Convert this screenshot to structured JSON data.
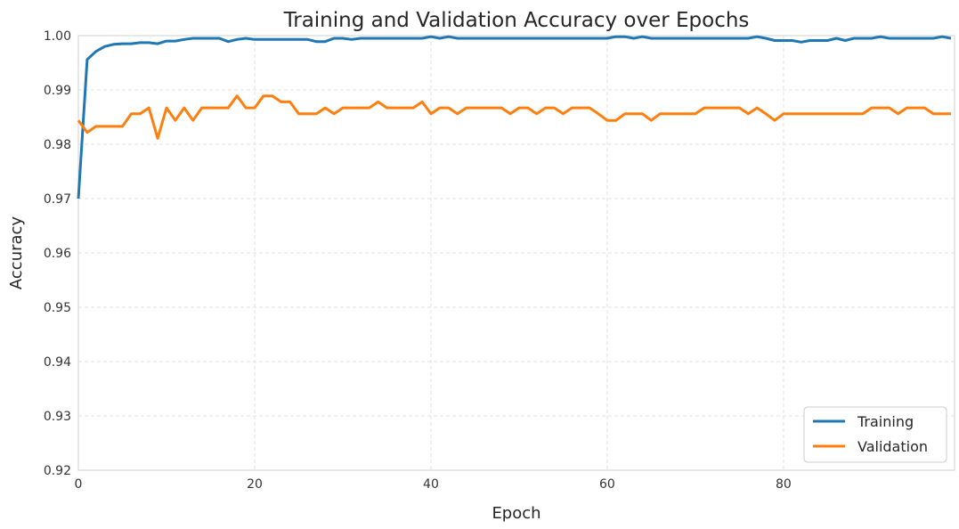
{
  "chart_data": {
    "type": "line",
    "title": "Training and Validation Accuracy over Epochs",
    "xlabel": "Epoch",
    "ylabel": "Accuracy",
    "xlim": [
      0,
      99
    ],
    "ylim": [
      0.92,
      1.0
    ],
    "xticks": [
      "0",
      "20",
      "40",
      "60",
      "80"
    ],
    "yticks": [
      "0.92",
      "0.93",
      "0.94",
      "0.95",
      "0.96",
      "0.97",
      "0.98",
      "0.99",
      "1.00"
    ],
    "grid": true,
    "legend_position": "bottom-right",
    "series": [
      {
        "name": "Training",
        "color": "#1f77b4",
        "values": [
          0.97,
          0.9956,
          0.9971,
          0.998,
          0.9984,
          0.9985,
          0.9985,
          0.9987,
          0.9987,
          0.9985,
          0.999,
          0.999,
          0.9993,
          0.9995,
          0.9995,
          0.9995,
          0.9995,
          0.9989,
          0.9993,
          0.9995,
          0.9993,
          0.9993,
          0.9993,
          0.9993,
          0.9993,
          0.9993,
          0.9993,
          0.9989,
          0.9989,
          0.9995,
          0.9995,
          0.9993,
          0.9995,
          0.9995,
          0.9995,
          0.9995,
          0.9995,
          0.9995,
          0.9995,
          0.9995,
          0.9998,
          0.9995,
          0.9998,
          0.9995,
          0.9995,
          0.9995,
          0.9995,
          0.9995,
          0.9995,
          0.9995,
          0.9995,
          0.9995,
          0.9995,
          0.9995,
          0.9995,
          0.9995,
          0.9995,
          0.9995,
          0.9995,
          0.9995,
          0.9995,
          0.9998,
          0.9998,
          0.9995,
          0.9998,
          0.9995,
          0.9995,
          0.9995,
          0.9995,
          0.9995,
          0.9995,
          0.9995,
          0.9995,
          0.9995,
          0.9995,
          0.9995,
          0.9995,
          0.9998,
          0.9995,
          0.9991,
          0.9991,
          0.9991,
          0.9988,
          0.9991,
          0.9991,
          0.9991,
          0.9995,
          0.9991,
          0.9995,
          0.9995,
          0.9995,
          0.9998,
          0.9995,
          0.9995,
          0.9995,
          0.9995,
          0.9995,
          0.9995,
          0.9998,
          0.9995
        ]
      },
      {
        "name": "Validation",
        "color": "#ff7f0e",
        "values": [
          0.9844,
          0.9822,
          0.9833,
          0.9833,
          0.9833,
          0.9833,
          0.9856,
          0.9856,
          0.9867,
          0.9811,
          0.9867,
          0.9844,
          0.9867,
          0.9844,
          0.9867,
          0.9867,
          0.9867,
          0.9867,
          0.9889,
          0.9867,
          0.9867,
          0.9889,
          0.9889,
          0.9878,
          0.9878,
          0.9856,
          0.9856,
          0.9856,
          0.9867,
          0.9856,
          0.9867,
          0.9867,
          0.9867,
          0.9867,
          0.9878,
          0.9867,
          0.9867,
          0.9867,
          0.9867,
          0.9878,
          0.9856,
          0.9867,
          0.9867,
          0.9856,
          0.9867,
          0.9867,
          0.9867,
          0.9867,
          0.9867,
          0.9856,
          0.9867,
          0.9867,
          0.9856,
          0.9867,
          0.9867,
          0.9856,
          0.9867,
          0.9867,
          0.9867,
          0.9856,
          0.9844,
          0.9844,
          0.9856,
          0.9856,
          0.9856,
          0.9844,
          0.9856,
          0.9856,
          0.9856,
          0.9856,
          0.9856,
          0.9867,
          0.9867,
          0.9867,
          0.9867,
          0.9867,
          0.9856,
          0.9867,
          0.9856,
          0.9844,
          0.9856,
          0.9856,
          0.9856,
          0.9856,
          0.9856,
          0.9856,
          0.9856,
          0.9856,
          0.9856,
          0.9856,
          0.9867,
          0.9867,
          0.9867,
          0.9856,
          0.9867,
          0.9867,
          0.9867,
          0.9856,
          0.9856,
          0.9856
        ]
      }
    ]
  }
}
